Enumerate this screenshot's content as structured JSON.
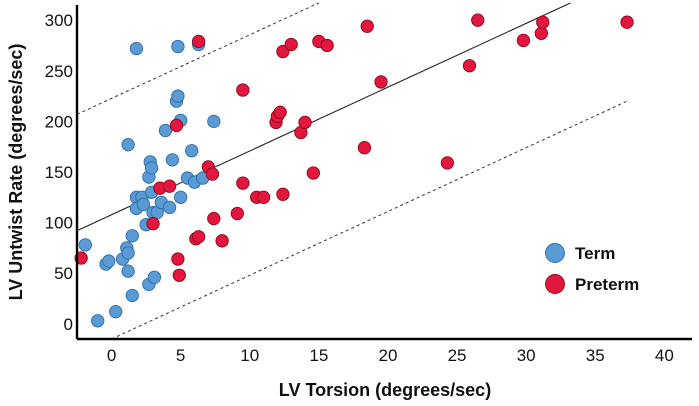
{
  "chart_data": {
    "type": "scatter",
    "title": "",
    "xlabel": "LV Torsion (degrees/sec)",
    "ylabel": "LV Untwist Rate (degrees/sec)",
    "xlim": [
      -2.5,
      42
    ],
    "ylim": [
      -15,
      315
    ],
    "xticks": [
      "0",
      "5",
      "10",
      "15",
      "20",
      "25",
      "30",
      "35",
      "40"
    ],
    "yticks": [
      "0",
      "50",
      "100",
      "150",
      "200",
      "250",
      "300"
    ],
    "xtick_values": [
      0,
      5,
      10,
      15,
      20,
      25,
      30,
      35,
      40
    ],
    "ytick_values": [
      0,
      50,
      100,
      150,
      200,
      250,
      300
    ],
    "regression_line": {
      "x": [
        -2.5,
        33.2
      ],
      "y": [
        92,
        317
      ]
    },
    "ci_upper": {
      "x": [
        -2.5,
        15
      ],
      "y": [
        207,
        317
      ]
    },
    "ci_lower": {
      "x": [
        0,
        37.3
      ],
      "y": [
        -15,
        220
      ]
    },
    "legend_position": "lower-right",
    "series": [
      {
        "name": "Term",
        "color": "#5b9bd5",
        "stroke": "#2e6da4",
        "points": [
          [
            -1.9,
            78
          ],
          [
            -1,
            3
          ],
          [
            -0.4,
            59
          ],
          [
            -0.2,
            62
          ],
          [
            0.3,
            12
          ],
          [
            0.8,
            64
          ],
          [
            1.1,
            75
          ],
          [
            1.2,
            70
          ],
          [
            1.2,
            52
          ],
          [
            1.2,
            177
          ],
          [
            1.5,
            28
          ],
          [
            1.5,
            87
          ],
          [
            1.8,
            125
          ],
          [
            1.8,
            114
          ],
          [
            1.8,
            272
          ],
          [
            2.2,
            125
          ],
          [
            2.3,
            118
          ],
          [
            2.5,
            98
          ],
          [
            2.7,
            145
          ],
          [
            2.7,
            39
          ],
          [
            2.8,
            160
          ],
          [
            2.9,
            154
          ],
          [
            2.9,
            130
          ],
          [
            3.0,
            110
          ],
          [
            3.1,
            46
          ],
          [
            3.3,
            110
          ],
          [
            3.6,
            120
          ],
          [
            3.9,
            191
          ],
          [
            4.2,
            115
          ],
          [
            4.4,
            162
          ],
          [
            4.7,
            220
          ],
          [
            4.8,
            274
          ],
          [
            4.8,
            225
          ],
          [
            5.0,
            125
          ],
          [
            5.0,
            201
          ],
          [
            5.5,
            144
          ],
          [
            5.8,
            171
          ],
          [
            6.0,
            140
          ],
          [
            6.3,
            276
          ],
          [
            6.6,
            144
          ],
          [
            7.4,
            200
          ]
        ]
      },
      {
        "name": "Preterm",
        "color": "#e3173e",
        "stroke": "#8b0a1e",
        "points": [
          [
            -2.2,
            65
          ],
          [
            3.0,
            99
          ],
          [
            3.5,
            134
          ],
          [
            4.2,
            136
          ],
          [
            4.7,
            196
          ],
          [
            4.8,
            64
          ],
          [
            4.9,
            48
          ],
          [
            6.1,
            84
          ],
          [
            6.3,
            86
          ],
          [
            6.3,
            279
          ],
          [
            7.0,
            155
          ],
          [
            7.3,
            148
          ],
          [
            7.4,
            104
          ],
          [
            8.0,
            82
          ],
          [
            9.1,
            109
          ],
          [
            9.5,
            231
          ],
          [
            9.5,
            139
          ],
          [
            10.5,
            125
          ],
          [
            11.0,
            125
          ],
          [
            11.9,
            199
          ],
          [
            12.0,
            205
          ],
          [
            12.2,
            209
          ],
          [
            12.4,
            128
          ],
          [
            12.4,
            269
          ],
          [
            13.0,
            276
          ],
          [
            13.7,
            189
          ],
          [
            14.0,
            199
          ],
          [
            14.6,
            149
          ],
          [
            15.0,
            279
          ],
          [
            15.6,
            275
          ],
          [
            18.3,
            174
          ],
          [
            18.5,
            294
          ],
          [
            19.5,
            239
          ],
          [
            24.3,
            159
          ],
          [
            25.9,
            255
          ],
          [
            26.5,
            300
          ],
          [
            29.8,
            280
          ],
          [
            31.1,
            287
          ],
          [
            31.2,
            298
          ],
          [
            37.3,
            298
          ]
        ]
      }
    ]
  }
}
